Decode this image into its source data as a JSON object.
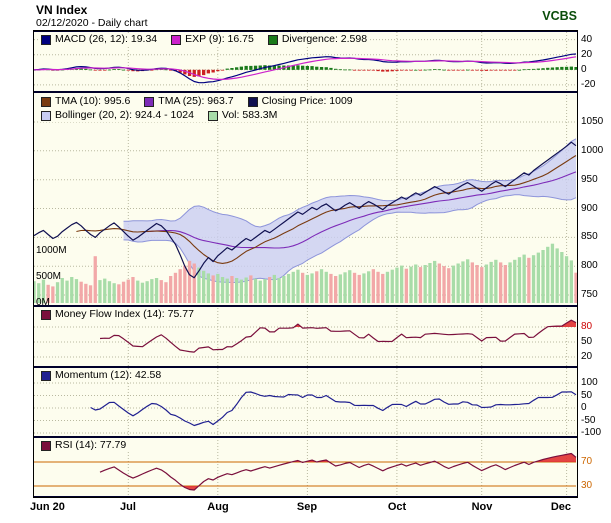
{
  "header": {
    "title": "VN Index",
    "subtitle": "02/12/2020 - Daily chart",
    "brand": "VCBS"
  },
  "colors": {
    "brand": "#0b4d0b",
    "panel_bg": "#fdfdee",
    "separator": "#00002a",
    "grid": "#b9b9a0",
    "macd_line": "#000080",
    "macd_signal": "#cc22cc",
    "macd_hist_pos": "#1a7a1a",
    "macd_hist_neg": "#cc2222",
    "close_line": "#101050",
    "tma10": "#7a3b10",
    "tma25": "#7d2bb8",
    "boll_fill": "#c9cdf2",
    "boll_edge": "#8d94da",
    "vol_up": "#a8dca8",
    "vol_down": "#f2a8a8",
    "mfi_line": "#7a0f3c",
    "mom_line": "#202090",
    "rsi_line": "#7a0f3c",
    "overbought_fill": "#e03030",
    "threshold_line": "#cc6600"
  },
  "panels": {
    "macd": {
      "legend": [
        {
          "label": "MACD (26, 12): 19.34",
          "color": "#000080"
        },
        {
          "label": "EXP (9): 16.75",
          "color": "#cc22cc"
        },
        {
          "label": "Divergence: 2.598",
          "color": "#1a7a1a"
        }
      ],
      "ticks": [
        {
          "v": 40,
          "label": "40"
        },
        {
          "v": 20,
          "label": "20"
        },
        {
          "v": 0,
          "label": "0"
        },
        {
          "v": -20,
          "label": "-20"
        }
      ]
    },
    "main": {
      "legend_row1": [
        {
          "label": "TMA (10): 995.6",
          "color": "#7a3b10"
        },
        {
          "label": "TMA (25): 963.7",
          "color": "#7d2bb8"
        },
        {
          "label": "Closing Price: 1009",
          "color": "#101050"
        }
      ],
      "legend_row2": [
        {
          "label": "Bollinger (20, 2): 924.4 - 1024",
          "color": "#c9cdf2"
        },
        {
          "label": "Vol: 583.3M",
          "color": "#a8dca8"
        }
      ],
      "price_ticks": [
        {
          "v": 1050,
          "label": "1050"
        },
        {
          "v": 1000,
          "label": "1000"
        },
        {
          "v": 950,
          "label": "950"
        },
        {
          "v": 900,
          "label": "900"
        },
        {
          "v": 850,
          "label": "850"
        },
        {
          "v": 800,
          "label": "800"
        },
        {
          "v": 750,
          "label": "750"
        }
      ],
      "vol_ticks": [
        {
          "v": 1000,
          "label": "1000M"
        },
        {
          "v": 500,
          "label": "500M"
        },
        {
          "v": 0,
          "label": "0M"
        }
      ]
    },
    "mfi": {
      "legend": [
        {
          "label": "Money Flow Index (14): 75.77",
          "color": "#7a0f3c"
        }
      ],
      "ticks": [
        {
          "v": 80,
          "label": "80",
          "color": "#cc0000"
        },
        {
          "v": 50,
          "label": "50"
        },
        {
          "v": 20,
          "label": "20"
        }
      ]
    },
    "momentum": {
      "legend": [
        {
          "label": "Momentum (12): 42.58",
          "color": "#202090"
        }
      ],
      "ticks": [
        {
          "v": 100,
          "label": "100"
        },
        {
          "v": 50,
          "label": "50"
        },
        {
          "v": 0,
          "label": "0"
        },
        {
          "v": -50,
          "label": "-50"
        },
        {
          "v": -100,
          "label": "-100"
        }
      ]
    },
    "rsi": {
      "legend": [
        {
          "label": "RSI (14): 77.79",
          "color": "#7a0f3c"
        }
      ],
      "ticks": [
        {
          "v": 70,
          "label": "70",
          "color": "#cc6600"
        },
        {
          "v": 30,
          "label": "30",
          "color": "#cc6600"
        }
      ]
    }
  },
  "chart_data": {
    "type": "line",
    "title": "VN Index",
    "date_shown": "02/12/2020",
    "x_tick_labels": [
      "Jun 20",
      "Jul",
      "Aug",
      "Sep",
      "Oct",
      "Nov",
      "Dec"
    ],
    "x_tick_indices": [
      0,
      20,
      39,
      58,
      77,
      95,
      113
    ],
    "price_axis_range": [
      750,
      1050
    ],
    "close": [
      853,
      858,
      862,
      855,
      848,
      852,
      860,
      866,
      872,
      876,
      870,
      862,
      855,
      850,
      858,
      864,
      870,
      875,
      868,
      860,
      852,
      845,
      850,
      856,
      862,
      868,
      874,
      870,
      862,
      850,
      838,
      820,
      800,
      785,
      780,
      792,
      805,
      815,
      808,
      818,
      825,
      832,
      828,
      835,
      842,
      848,
      844,
      850,
      856,
      862,
      858,
      864,
      870,
      876,
      882,
      888,
      894,
      890,
      896,
      902,
      898,
      904,
      908,
      902,
      896,
      900,
      906,
      910,
      905,
      900,
      907,
      912,
      908,
      903,
      898,
      905,
      910,
      915,
      920,
      916,
      922,
      927,
      923,
      928,
      933,
      938,
      934,
      929,
      925,
      931,
      936,
      941,
      945,
      940,
      935,
      930,
      936,
      942,
      947,
      943,
      938,
      944,
      950,
      956,
      962,
      958,
      966,
      972,
      978,
      984,
      990,
      996,
      1002,
      1008,
      1015,
      1009
    ],
    "volume_m": [
      420,
      380,
      450,
      350,
      320,
      400,
      480,
      430,
      500,
      460,
      410,
      370,
      340,
      900,
      440,
      470,
      420,
      380,
      360,
      410,
      450,
      500,
      430,
      390,
      420,
      460,
      480,
      440,
      400,
      520,
      580,
      650,
      720,
      810,
      760,
      680,
      620,
      570,
      530,
      560,
      500,
      470,
      520,
      480,
      450,
      490,
      530,
      470,
      430,
      460,
      500,
      540,
      480,
      520,
      560,
      600,
      640,
      580,
      540,
      570,
      610,
      650,
      600,
      560,
      520,
      550,
      590,
      630,
      580,
      540,
      570,
      610,
      650,
      600,
      560,
      600,
      640,
      680,
      720,
      660,
      700,
      740,
      690,
      730,
      770,
      810,
      760,
      710,
      670,
      720,
      760,
      800,
      840,
      780,
      730,
      690,
      740,
      790,
      830,
      780,
      730,
      780,
      830,
      880,
      930,
      870,
      920,
      970,
      1020,
      1080,
      1140,
      1050,
      980,
      900,
      820,
      583.3
    ],
    "indicators": {
      "macd_26_12": 19.34,
      "macd_signal_exp_9": 16.75,
      "macd_divergence": 2.598,
      "tma_10": 995.6,
      "tma_25": 963.7,
      "closing_price": 1009,
      "bollinger_20_2_low": 924.4,
      "bollinger_20_2_high": 1024,
      "volume_current": "583.3M",
      "money_flow_index_14": 75.77,
      "momentum_12": 42.58,
      "rsi_14": 77.79
    }
  }
}
